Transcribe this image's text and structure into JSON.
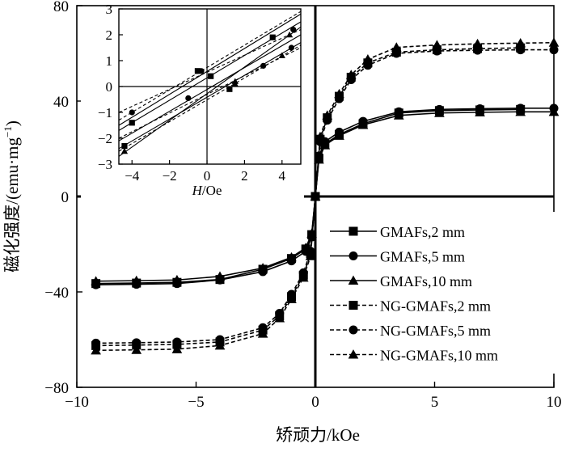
{
  "chart_data": {
    "type": "line",
    "xlabel": "矫顽力/kOe",
    "ylabel": "磁化强度/(emu·mg",
    "ylabel_sup": "−1",
    "ylabel_close": ")",
    "xlim": [
      -10,
      10
    ],
    "ylim": [
      -80,
      80
    ],
    "x_ticks": [
      -10,
      -5,
      0,
      5,
      10
    ],
    "x_tick_labels": [
      "−10",
      "−5",
      "0",
      "5",
      "10"
    ],
    "y_ticks": [
      -80,
      -40,
      0,
      40,
      80
    ],
    "y_tick_labels": [
      "−80",
      "−40",
      "0",
      "40",
      "80"
    ],
    "grid": false,
    "legend_position": "lower-right",
    "series": [
      {
        "name": "GMAFs,2 mm",
        "line": "solid",
        "marker": "square",
        "x": [
          -9.2,
          -7.5,
          -5.8,
          -4.0,
          -2.2,
          -1.0,
          -0.4,
          -0.15,
          0,
          0.15,
          0.4,
          1.0,
          2.0,
          3.5,
          5.2,
          6.9,
          8.6
        ],
        "y": [
          -36.5,
          -36.3,
          -36.0,
          -34.8,
          -30.5,
          -26.0,
          -22.0,
          -16.0,
          0,
          16.0,
          22.0,
          26.0,
          30.5,
          35.0,
          36.0,
          36.3,
          36.5
        ]
      },
      {
        "name": "GMAFs,5 mm",
        "line": "solid",
        "marker": "circle",
        "x": [
          -9.2,
          -7.5,
          -5.8,
          -4.0,
          -2.2,
          -1.0,
          -0.4,
          -0.15,
          0,
          0.15,
          0.4,
          1.0,
          2.0,
          3.5,
          5.2,
          6.9,
          8.6,
          10.0
        ],
        "y": [
          -37.0,
          -36.8,
          -36.5,
          -35.0,
          -31.5,
          -27.0,
          -23.0,
          -17.0,
          0,
          17.0,
          23.0,
          27.0,
          31.5,
          35.5,
          36.5,
          36.8,
          37.0,
          37.0
        ]
      },
      {
        "name": "GMAFs,10 mm",
        "line": "solid",
        "marker": "triangle",
        "x": [
          -9.2,
          -7.5,
          -5.8,
          -4.0,
          -2.2,
          -1.0,
          -0.4,
          -0.15,
          0,
          0.15,
          0.4,
          1.0,
          2.0,
          3.5,
          5.2,
          6.9,
          8.6,
          10.0
        ],
        "y": [
          -35.5,
          -35.3,
          -35.0,
          -33.5,
          -30.0,
          -25.5,
          -21.5,
          -15.5,
          0,
          15.5,
          21.5,
          25.5,
          30.0,
          34.0,
          35.0,
          35.3,
          35.5,
          35.5
        ]
      },
      {
        "name": "NG-GMAFs,2 mm",
        "line": "dashed",
        "marker": "square",
        "x": [
          -9.2,
          -7.5,
          -5.8,
          -4.0,
          -2.2,
          -1.5,
          -1.0,
          -0.5,
          -0.2,
          0,
          0.2,
          0.5,
          1.0,
          1.5,
          2.2,
          3.4,
          5.1,
          6.8,
          8.6
        ],
        "y": [
          -62.5,
          -62.3,
          -62.0,
          -61.0,
          -56.0,
          -50.0,
          -42.0,
          -33.0,
          -24.0,
          0,
          24.0,
          33.0,
          42.0,
          50.0,
          56.0,
          60.5,
          61.5,
          62.0,
          62.3
        ]
      },
      {
        "name": "NG-GMAFs,5 mm",
        "line": "dashed",
        "marker": "circle",
        "x": [
          -9.2,
          -7.5,
          -5.8,
          -4.0,
          -2.2,
          -1.5,
          -1.0,
          -0.5,
          -0.2,
          0,
          0.2,
          0.5,
          1.0,
          1.5,
          2.2,
          3.4,
          5.1,
          6.8,
          8.6,
          10.0
        ],
        "y": [
          -61.5,
          -61.3,
          -61.0,
          -60.0,
          -55.0,
          -49.0,
          -41.0,
          -32.0,
          -23.0,
          0,
          23.0,
          32.0,
          41.0,
          49.0,
          55.0,
          60.0,
          61.0,
          61.3,
          61.5,
          61.5
        ]
      },
      {
        "name": "NG-GMAFs,10 mm",
        "line": "dashed",
        "marker": "triangle",
        "x": [
          -9.2,
          -7.5,
          -5.8,
          -4.0,
          -2.2,
          -1.5,
          -1.0,
          -0.5,
          -0.2,
          0,
          0.2,
          0.5,
          1.0,
          1.5,
          2.2,
          3.4,
          5.1,
          6.8,
          8.6,
          10.0
        ],
        "y": [
          -64.5,
          -64.3,
          -64.0,
          -62.5,
          -57.5,
          -51.0,
          -43.0,
          -34.0,
          -25.0,
          0,
          25.0,
          34.0,
          43.0,
          51.0,
          57.5,
          62.5,
          63.5,
          64.0,
          64.3,
          64.5
        ]
      }
    ],
    "inset": {
      "xlabel_italic": "H",
      "xlabel_rest": "/Oe",
      "xlim": [
        -4.7,
        5.0
      ],
      "ylim": [
        -3,
        3
      ],
      "x_ticks": [
        -4,
        -2,
        0,
        2,
        4
      ],
      "x_tick_labels": [
        "−4",
        "−2",
        "0",
        "2",
        "4"
      ],
      "y_ticks": [
        -3,
        -2,
        -1,
        0,
        1,
        2,
        3
      ],
      "y_tick_labels": [
        "−3",
        "−2",
        "−1",
        "0",
        "1",
        "2",
        "3"
      ],
      "lines": [
        {
          "style": "solid",
          "x": [
            -4.7,
            5.0
          ],
          "y": [
            -2.7,
            2.3
          ],
          "markers": [
            {
              "x": -4.4,
              "y": -2.5,
              "shape": "triangle"
            },
            {
              "x": 4.4,
              "y": 2.0,
              "shape": "triangle"
            }
          ]
        },
        {
          "style": "solid",
          "x": [
            -4.7,
            5.0
          ],
          "y": [
            -2.4,
            1.7
          ],
          "markers": [
            {
              "x": -4.4,
              "y": -2.3,
              "shape": "square"
            },
            {
              "x": 1.2,
              "y": -0.1,
              "shape": "square"
            }
          ]
        },
        {
          "style": "solid",
          "x": [
            -4.7,
            5.0
          ],
          "y": [
            -2.1,
            2.0
          ],
          "markers": [
            {
              "x": -1.0,
              "y": -0.45,
              "shape": "circle"
            },
            {
              "x": 4.5,
              "y": 1.5,
              "shape": "circle"
            }
          ]
        },
        {
          "style": "solid",
          "x": [
            -4.7,
            5.0
          ],
          "y": [
            -1.7,
            2.5
          ],
          "markers": [
            {
              "x": -4.0,
              "y": -1.4,
              "shape": "square"
            },
            {
              "x": 0.2,
              "y": 0.4,
              "shape": "square"
            }
          ]
        },
        {
          "style": "solid",
          "x": [
            -4.7,
            5.0
          ],
          "y": [
            -1.5,
            2.8
          ],
          "markers": [
            {
              "x": 4.6,
              "y": 2.2,
              "shape": "circle"
            }
          ]
        },
        {
          "style": "dashed",
          "x": [
            -4.7,
            5.0
          ],
          "y": [
            -2.5,
            1.6
          ],
          "markers": [
            {
              "x": 1.5,
              "y": 0.2,
              "shape": "triangle"
            },
            {
              "x": 4.0,
              "y": 1.2,
              "shape": "triangle"
            }
          ]
        },
        {
          "style": "dashed",
          "x": [
            -4.7,
            5.0
          ],
          "y": [
            -1.3,
            2.9
          ],
          "markers": [
            {
              "x": -4.0,
              "y": -1.0,
              "shape": "circle"
            },
            {
              "x": -0.3,
              "y": 0.6,
              "shape": "circle"
            }
          ]
        },
        {
          "style": "dashed",
          "x": [
            -4.7,
            5.0
          ],
          "y": [
            -1.0,
            2.2
          ],
          "markers": [
            {
              "x": -0.5,
              "y": 0.6,
              "shape": "square"
            },
            {
              "x": 3.5,
              "y": 1.9,
              "shape": "square"
            }
          ]
        },
        {
          "style": "dashed",
          "x": [
            -4.7,
            5.0
          ],
          "y": [
            -2.0,
            1.5
          ],
          "markers": [
            {
              "x": 1.5,
              "y": 0.1,
              "shape": "triangle"
            },
            {
              "x": 3.0,
              "y": 0.8,
              "shape": "circle"
            }
          ]
        }
      ]
    }
  }
}
